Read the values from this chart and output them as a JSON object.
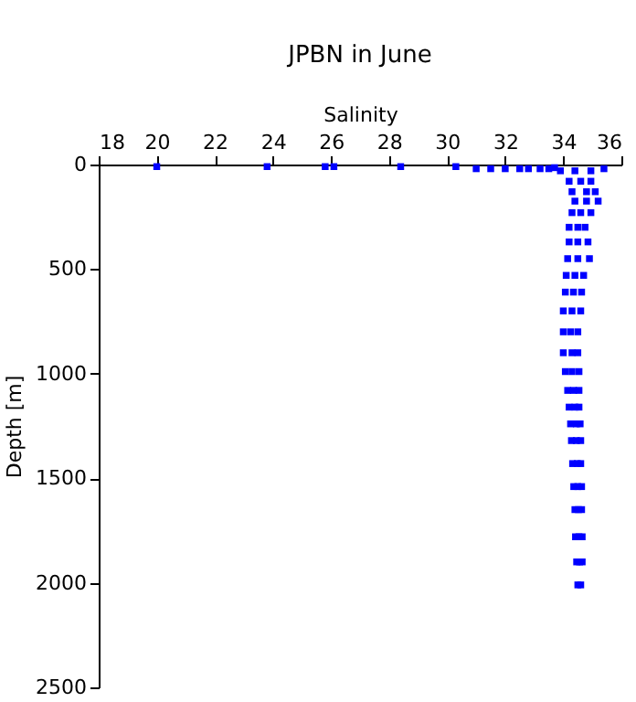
{
  "chart_data": {
    "type": "scatter",
    "title": "JPBN in June",
    "xlabel": "Salinity",
    "ylabel": "Depth [m]",
    "xlim": [
      18,
      36
    ],
    "xticks": [
      18,
      20,
      22,
      24,
      26,
      28,
      30,
      32,
      34,
      36
    ],
    "ylim": [
      2500,
      0
    ],
    "yticks": [
      0,
      500,
      1000,
      1500,
      2000,
      2500
    ],
    "grid": false,
    "marker": "square",
    "legend": false,
    "series": [
      {
        "color": "#0000ff",
        "x": [
          20,
          23.8,
          25.8,
          26.1,
          28.4,
          30.3,
          31,
          31.5,
          32,
          32.5,
          32.8,
          33.2,
          33.5,
          35.4,
          33.7,
          33.9,
          34.4,
          34.95,
          34.2,
          34.6,
          34.95,
          34.3,
          34.8,
          35.1,
          34.4,
          34.8,
          35.2,
          34.3,
          34.6,
          34.95,
          34.2,
          34.5,
          34.75,
          34.2,
          34.5,
          34.85,
          34.15,
          34.5,
          34.9,
          34.1,
          34.4,
          34.7,
          34.07,
          34.35,
          34.63,
          34.0,
          34.3,
          34.6,
          34.0,
          34.25,
          34.5,
          34.0,
          34.3,
          34.5,
          34.07,
          34.3,
          34.54,
          34.15,
          34.35,
          34.54,
          34.2,
          34.4,
          34.54,
          34.25,
          34.45,
          34.58,
          34.28,
          34.45,
          34.6,
          34.32,
          34.48,
          34.6,
          34.36,
          34.5,
          34.63,
          34.4,
          34.52,
          34.63,
          34.42,
          34.54,
          34.65,
          34.46,
          34.56,
          34.65,
          34.5,
          34.6
        ],
        "values": [
          10,
          10,
          10,
          10,
          10,
          10,
          20,
          20,
          20,
          20,
          20,
          20,
          20,
          20,
          15,
          30,
          30,
          30,
          80,
          80,
          80,
          130,
          130,
          130,
          175,
          175,
          175,
          230,
          230,
          230,
          300,
          300,
          300,
          370,
          370,
          370,
          450,
          450,
          450,
          530,
          530,
          530,
          610,
          610,
          610,
          700,
          700,
          700,
          800,
          800,
          800,
          900,
          900,
          900,
          990,
          990,
          990,
          1080,
          1080,
          1080,
          1160,
          1160,
          1160,
          1240,
          1240,
          1240,
          1320,
          1320,
          1320,
          1430,
          1430,
          1430,
          1540,
          1540,
          1540,
          1650,
          1650,
          1650,
          1780,
          1780,
          1780,
          1900,
          1900,
          1900,
          2010,
          2010
        ]
      }
    ]
  }
}
